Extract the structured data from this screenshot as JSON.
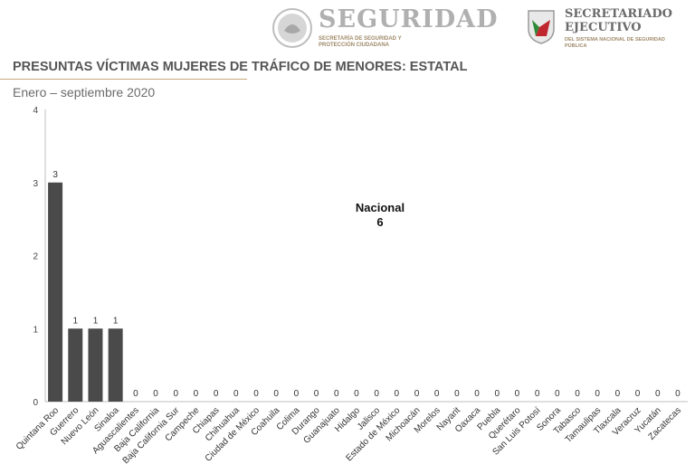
{
  "header": {
    "seguridad_title": "SEGURIDAD",
    "seguridad_subtitle": "SECRETARÍA DE SEGURIDAD Y PROTECCIÓN CIUDADANA",
    "secretariado_title": "SECRETARIADO EJECUTIVO",
    "secretariado_subtitle": "DEL SISTEMA NACIONAL DE SEGURIDAD PÚBLICA"
  },
  "colors": {
    "bar": "#4a4a4a",
    "rule": "#c8a97e",
    "title": "#555555"
  },
  "chart_data": {
    "type": "bar",
    "title": "PRESUNTAS VÍCTIMAS MUJERES DE TRÁFICO DE MENORES: ESTATAL",
    "subtitle": "Enero – septiembre 2020",
    "annotation": {
      "label": "Nacional",
      "value": "6"
    },
    "categories": [
      "Quintana Roo",
      "Guerrero",
      "Nuevo León",
      "Sinaloa",
      "Aguascalientes",
      "Baja California",
      "Baja California Sur",
      "Campeche",
      "Chiapas",
      "Chihuahua",
      "Ciudad de México",
      "Coahuila",
      "Colima",
      "Durango",
      "Guanajuato",
      "Hidalgo",
      "Jalisco",
      "Estado de México",
      "Michoacán",
      "Morelos",
      "Nayarit",
      "Oaxaca",
      "Puebla",
      "Querétaro",
      "San Luis Potosí",
      "Sonora",
      "Tabasco",
      "Tamaulipas",
      "Tlaxcala",
      "Veracruz",
      "Yucatán",
      "Zacatecas"
    ],
    "values": [
      3,
      1,
      1,
      1,
      0,
      0,
      0,
      0,
      0,
      0,
      0,
      0,
      0,
      0,
      0,
      0,
      0,
      0,
      0,
      0,
      0,
      0,
      0,
      0,
      0,
      0,
      0,
      0,
      0,
      0,
      0,
      0
    ],
    "yticks": [
      0,
      1,
      2,
      3,
      4
    ],
    "ylim": [
      0,
      4
    ],
    "grid": false
  }
}
